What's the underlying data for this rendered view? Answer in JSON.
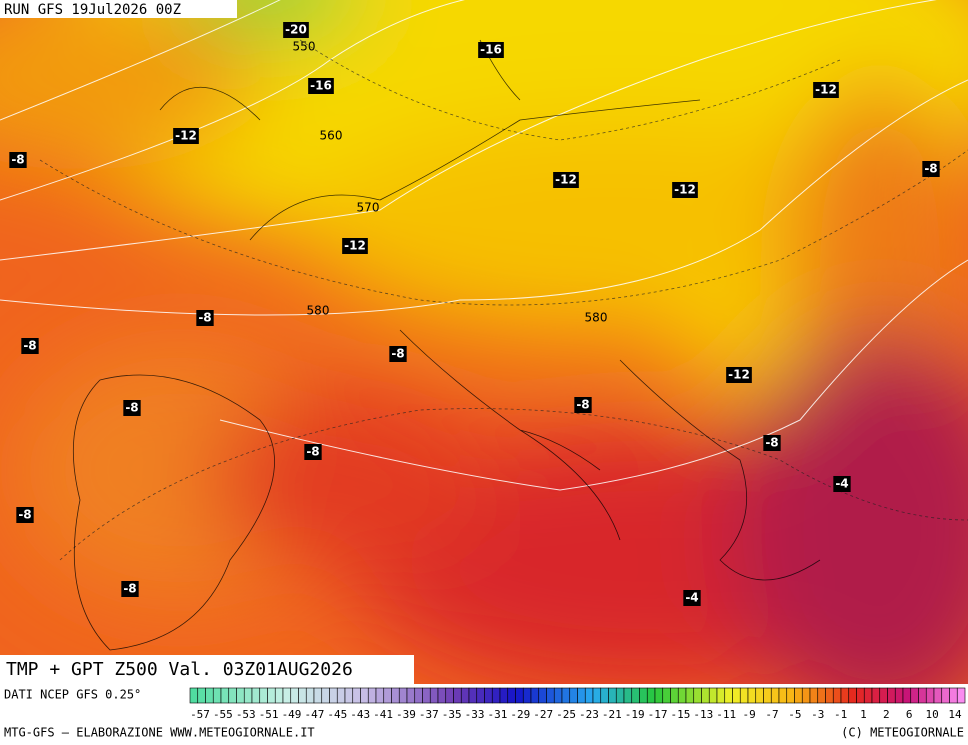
{
  "header": {
    "run": "RUN GFS 19Jul2026 00Z"
  },
  "map": {
    "title": "TMP + GPT Z500 Val. 03Z01AUG2026",
    "labels": [
      "-20",
      "550",
      "-16",
      "-16",
      "-12",
      "-12",
      "560",
      "-8",
      "-8",
      "-12",
      "-12",
      "570",
      "-12",
      "580",
      "-8",
      "580",
      "-8",
      "-8",
      "-12",
      "-8",
      "-8",
      "-8",
      "-8",
      "-4",
      "-8",
      "-8",
      "-4"
    ]
  },
  "footer": {
    "source": "DATI NCEP GFS 0.25°",
    "credit": "MTG-GFS — ELABORAZIONE WWW.METEOGIORNALE.IT",
    "copyright": "(C) METEOGIORNALE",
    "scale": [
      -57,
      -55,
      -53,
      -51,
      -49,
      -47,
      -45,
      -43,
      -41,
      -39,
      -37,
      -35,
      -33,
      -31,
      -29,
      -27,
      -25,
      -23,
      -21,
      -19,
      -17,
      -15,
      -13,
      -11,
      -9,
      -7,
      -5,
      -3,
      -1,
      1,
      2,
      6,
      10,
      14
    ]
  }
}
